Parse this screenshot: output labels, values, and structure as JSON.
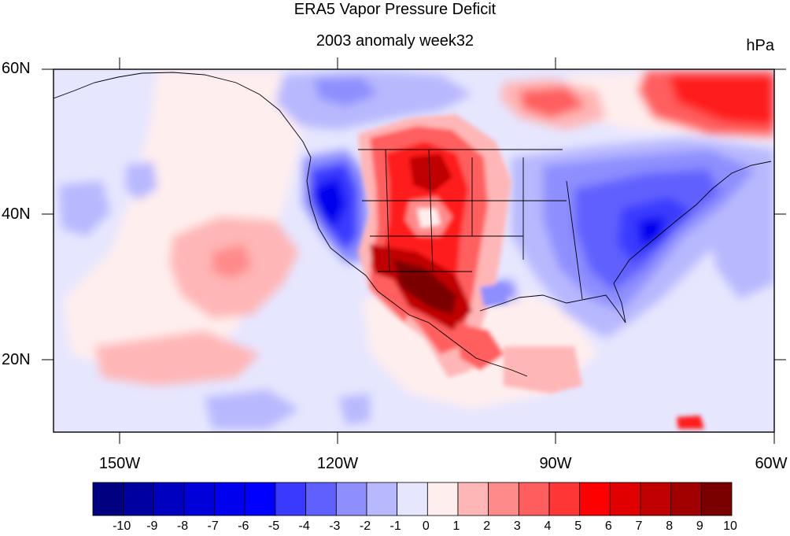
{
  "title": "ERA5 Vapor Pressure Deficit",
  "subtitle": "2003 anomaly week32",
  "units": "hPa",
  "lat_labels": [
    "60N",
    "40N",
    "20N"
  ],
  "lon_labels": [
    "150W",
    "120W",
    "90W",
    "60W"
  ],
  "colorbar": {
    "labels": [
      "-10",
      "-9",
      "-8",
      "-7",
      "-6",
      "-5",
      "-4",
      "-3",
      "-2",
      "-1",
      "0",
      "1",
      "2",
      "3",
      "4",
      "5",
      "6",
      "7",
      "8",
      "9",
      "10"
    ],
    "colors": [
      "#000080",
      "#0000a0",
      "#0000c0",
      "#0000d8",
      "#0000ee",
      "#0000ff",
      "#3a3aff",
      "#6060ff",
      "#8e8eff",
      "#b8b8ff",
      "#e6e6ff",
      "#ffeeee",
      "#ffb6b6",
      "#ff8a8a",
      "#ff5e5e",
      "#ff3636",
      "#ff0000",
      "#e00000",
      "#c00000",
      "#a00000",
      "#7a0000"
    ]
  },
  "map": {
    "projection": "cylindrical-equidistant",
    "lon_range": [
      -159,
      -60
    ],
    "lat_range": [
      10,
      60
    ],
    "background_color": "#e6e6ff"
  }
}
